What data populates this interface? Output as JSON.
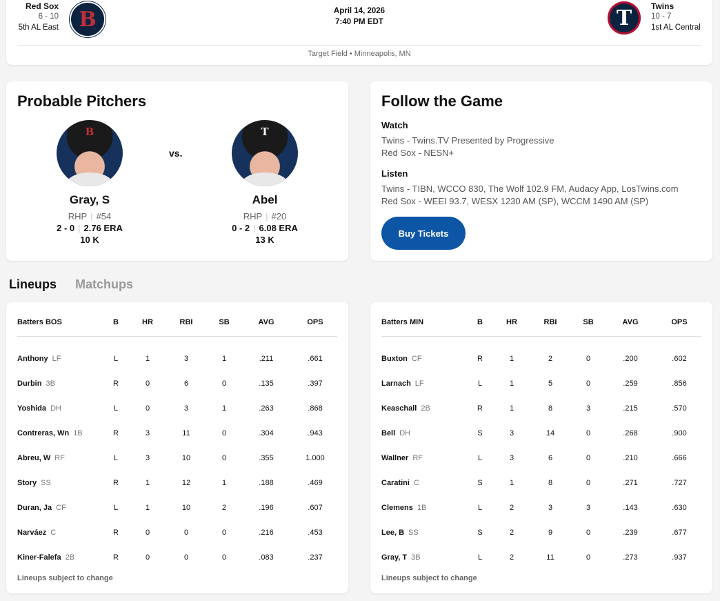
{
  "header": {
    "away": {
      "name": "Red Sox",
      "record": "6 - 10",
      "standing": "5th AL East",
      "logo_letter": "B",
      "logo_icon": "red-sox-logo-icon"
    },
    "home": {
      "name": "Twins",
      "record": "10 - 7",
      "standing": "1st AL Central",
      "logo_letter": "T",
      "logo_icon": "twins-logo-icon"
    },
    "date": "April 14, 2026",
    "time": "7:40 PM EDT",
    "venue": "Target Field • Minneapolis, MN"
  },
  "pitchers": {
    "title": "Probable Pitchers",
    "vs": "vs.",
    "away": {
      "name": "Gray, S",
      "hand": "RHP",
      "number": "#54",
      "record": "2 - 0",
      "era": "2.76 ERA",
      "k": "10 K",
      "cap": "B"
    },
    "home": {
      "name": "Abel",
      "hand": "RHP",
      "number": "#20",
      "record": "0 - 2",
      "era": "6.08 ERA",
      "k": "13 K",
      "cap": "T"
    }
  },
  "follow": {
    "title": "Follow the Game",
    "watch_label": "Watch",
    "watch": [
      "Twins - Twins.TV Presented by Progressive",
      "Red Sox - NESN+"
    ],
    "listen_label": "Listen",
    "listen": [
      "Twins - TIBN, WCCO 830, The Wolf 102.9 FM, Audacy App, LosTwins.com",
      "Red Sox - WEEI 93.7, WESX 1230 AM (SP), WCCM 1490 AM (SP)"
    ],
    "button": "Buy Tickets"
  },
  "tabs": {
    "lineups": "Lineups",
    "matchups": "Matchups"
  },
  "columns": [
    "B",
    "HR",
    "RBI",
    "SB",
    "AVG",
    "OPS"
  ],
  "lineups": {
    "bos": {
      "header": "Batters BOS",
      "note": "Lineups subject to change",
      "rows": [
        [
          "Anthony",
          "LF",
          "L",
          "1",
          "3",
          "1",
          ".211",
          ".661"
        ],
        [
          "Durbin",
          "3B",
          "R",
          "0",
          "6",
          "0",
          ".135",
          ".397"
        ],
        [
          "Yoshida",
          "DH",
          "L",
          "0",
          "3",
          "1",
          ".263",
          ".868"
        ],
        [
          "Contreras, Wn",
          "1B",
          "R",
          "3",
          "11",
          "0",
          ".304",
          ".943"
        ],
        [
          "Abreu, W",
          "RF",
          "L",
          "3",
          "10",
          "0",
          ".355",
          "1.000"
        ],
        [
          "Story",
          "SS",
          "R",
          "1",
          "12",
          "1",
          ".188",
          ".469"
        ],
        [
          "Duran, Ja",
          "CF",
          "L",
          "1",
          "10",
          "2",
          ".196",
          ".607"
        ],
        [
          "Narváez",
          "C",
          "R",
          "0",
          "0",
          "0",
          ".216",
          ".453"
        ],
        [
          "Kiner-Falefa",
          "2B",
          "R",
          "0",
          "0",
          "0",
          ".083",
          ".237"
        ]
      ]
    },
    "min": {
      "header": "Batters MIN",
      "note": "Lineups subject to change",
      "rows": [
        [
          "Buxton",
          "CF",
          "R",
          "1",
          "2",
          "0",
          ".200",
          ".602"
        ],
        [
          "Larnach",
          "LF",
          "L",
          "1",
          "5",
          "0",
          ".259",
          ".856"
        ],
        [
          "Keaschall",
          "2B",
          "R",
          "1",
          "8",
          "3",
          ".215",
          ".570"
        ],
        [
          "Bell",
          "DH",
          "S",
          "3",
          "14",
          "0",
          ".268",
          ".900"
        ],
        [
          "Wallner",
          "RF",
          "L",
          "3",
          "6",
          "0",
          ".210",
          ".666"
        ],
        [
          "Caratini",
          "C",
          "S",
          "1",
          "8",
          "0",
          ".271",
          ".727"
        ],
        [
          "Clemens",
          "1B",
          "L",
          "2",
          "3",
          "3",
          ".143",
          ".630"
        ],
        [
          "Lee, B",
          "SS",
          "S",
          "2",
          "9",
          "0",
          ".239",
          ".677"
        ],
        [
          "Gray, T",
          "3B",
          "L",
          "2",
          "11",
          "0",
          ".273",
          ".937"
        ]
      ]
    }
  }
}
